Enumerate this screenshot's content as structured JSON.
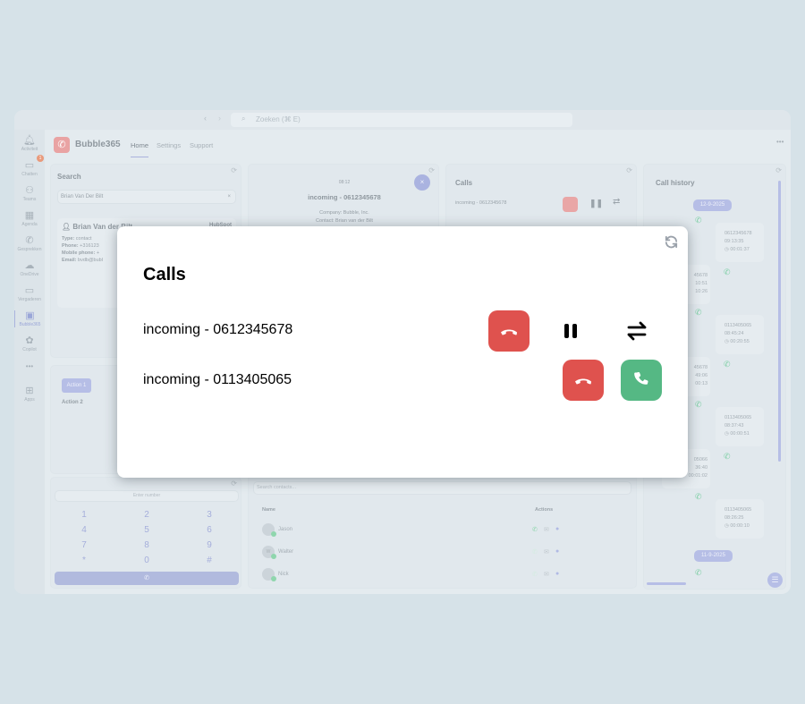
{
  "topbar": {
    "search_placeholder": "Zoeken (⌘ E)"
  },
  "rail": [
    {
      "label": "Activiteit",
      "icon": "bell-icon"
    },
    {
      "label": "Chatten",
      "icon": "chat-icon",
      "badge": "1"
    },
    {
      "label": "Teams",
      "icon": "teams-icon"
    },
    {
      "label": "Agenda",
      "icon": "calendar-icon"
    },
    {
      "label": "Gesprekken",
      "icon": "phone-icon"
    },
    {
      "label": "OneDrive",
      "icon": "cloud-icon"
    },
    {
      "label": "Vergaderen",
      "icon": "video-icon"
    },
    {
      "label": "Bubble365",
      "icon": "bubble-app-icon",
      "active": true
    },
    {
      "label": "Copilot",
      "icon": "copilot-icon"
    },
    {
      "label": "•••",
      "icon": "more-icon"
    },
    {
      "label": "Apps",
      "icon": "plus-icon"
    }
  ],
  "header": {
    "app_name": "Bubble365",
    "tabs": [
      "Home",
      "Settings",
      "Support"
    ],
    "active_tab": "Home"
  },
  "search_panel": {
    "title": "Search",
    "query": "Brian Van Der Bilt",
    "contact": {
      "name": "Brian Van der Bilt",
      "source": "HubSpot",
      "type_label": "Type:",
      "type": "contact",
      "phone_label": "Phone:",
      "phone": "+316123",
      "mobile_label": "Mobile phone:",
      "mobile": "+",
      "email_label": "Email:",
      "email": "bvdb@bubl"
    }
  },
  "action_panel": {
    "action1": "Action 1",
    "action2": "Action 2"
  },
  "dialpad": {
    "placeholder": "Enter number",
    "keys": [
      "1",
      "2",
      "3",
      "4",
      "5",
      "6",
      "7",
      "8",
      "9",
      "*",
      "0",
      "#"
    ]
  },
  "active_call_panel": {
    "timer": "08:12",
    "title": "incoming - 0612345678",
    "company": "Company: Bubble, Inc.",
    "contact": "Contact: Brian van der Bilt"
  },
  "calls_panel_bg": {
    "title": "Calls",
    "call": "incoming - 0612345678"
  },
  "contacts": {
    "placeholder": "Search contacts...",
    "col_name": "Name",
    "col_actions": "Actions",
    "rows": [
      {
        "name": "Jason"
      },
      {
        "name": "Walter",
        "initial": "W"
      },
      {
        "name": "Nick"
      }
    ]
  },
  "history": {
    "title": "Call history",
    "dates": [
      "12-9-2025",
      "11-9-2025"
    ],
    "right": [
      {
        "number": "0612345678",
        "time": "09:13:35",
        "duration": "00:01:37"
      },
      {
        "number": "0113405065",
        "time": "08:45:24",
        "duration": "00:20:55"
      },
      {
        "number": "0113405065",
        "time": "08:37:43",
        "duration": "00:00:51"
      },
      {
        "number": "0113405065",
        "time": "08:26:25",
        "duration": "00:00:10"
      }
    ],
    "left": [
      {
        "number": "45678",
        "time": "10:51",
        "duration": "10:26"
      },
      {
        "number": "45678",
        "time": "49:06",
        "duration": "00:13"
      },
      {
        "number": "05066",
        "time": "36:40",
        "duration": "00:01:02"
      }
    ]
  },
  "modal": {
    "title": "Calls",
    "calls": [
      {
        "label": "incoming - 0612345678",
        "state": "active"
      },
      {
        "label": "incoming - 0113405065",
        "state": "ringing"
      }
    ]
  },
  "colors": {
    "hangup": "#df524e",
    "answer": "#55b884",
    "accent": "#b6bee6",
    "logo": "#e9a3a3"
  }
}
